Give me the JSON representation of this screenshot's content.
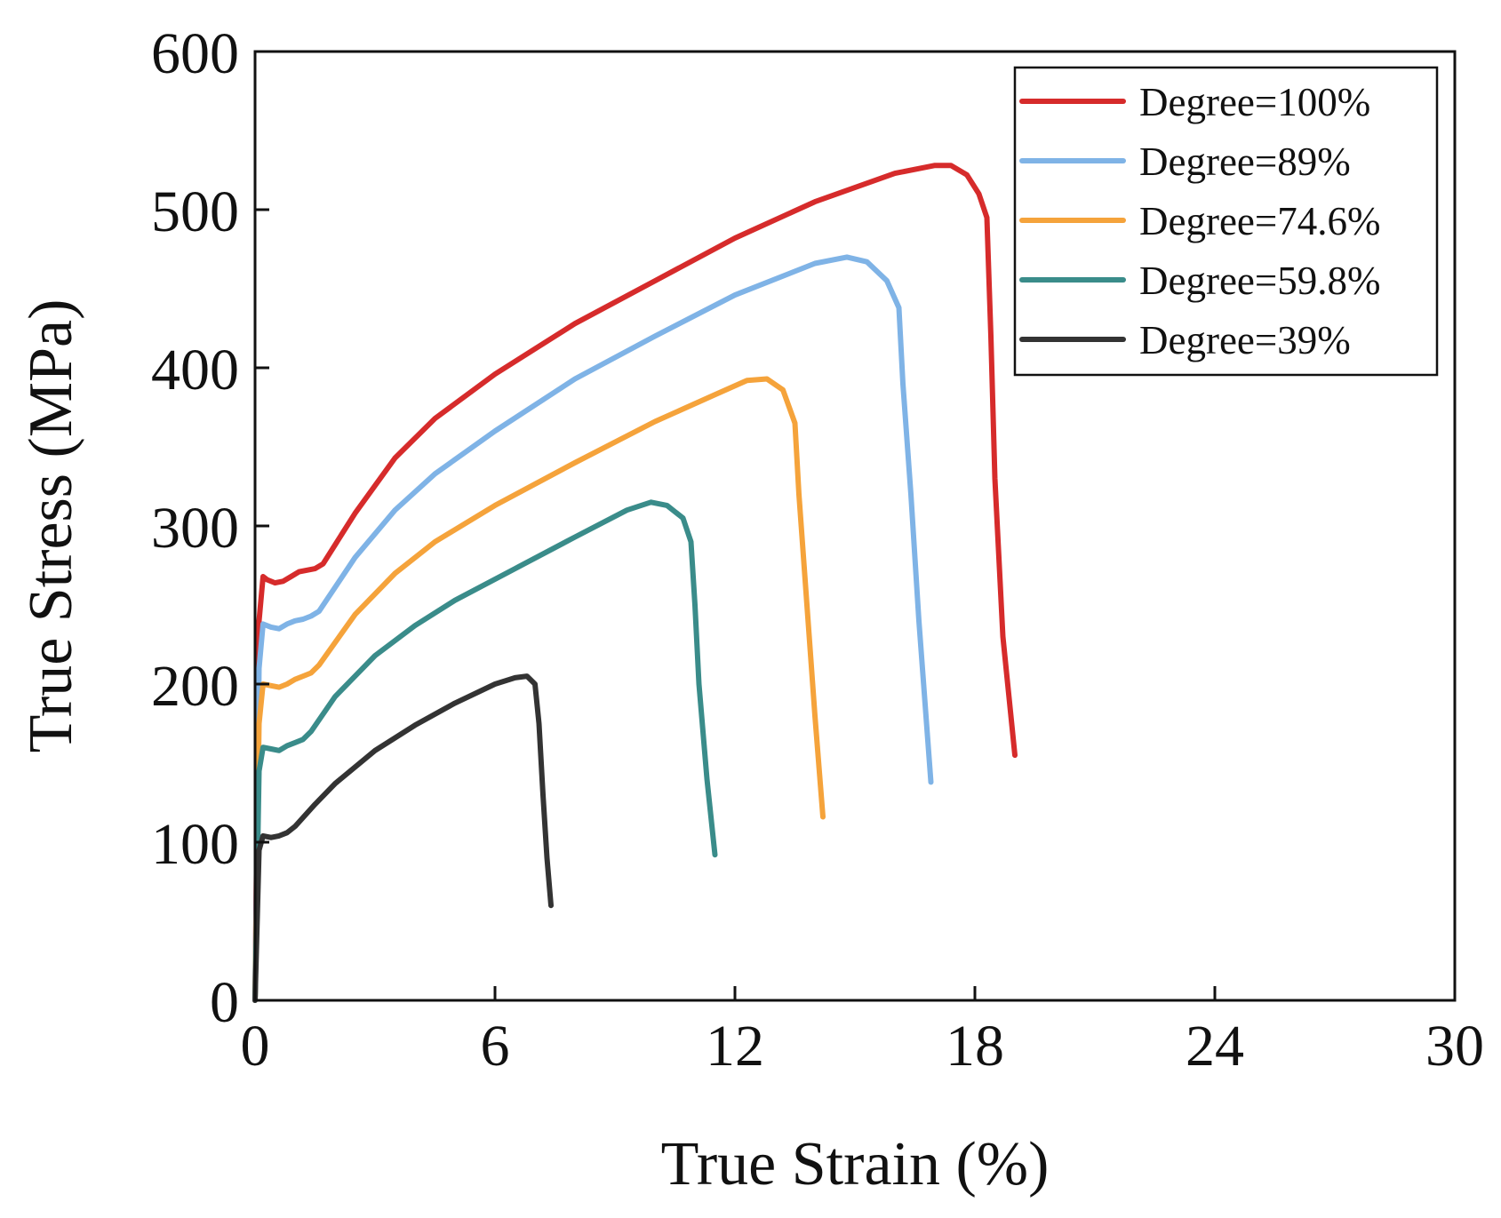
{
  "chart_data": {
    "type": "line",
    "title": "",
    "xlabel": "True Strain (%)",
    "ylabel": "True Stress (MPa)",
    "xlim": [
      0,
      30
    ],
    "ylim": [
      0,
      600
    ],
    "xticks": [
      0,
      6,
      12,
      18,
      24,
      30
    ],
    "yticks": [
      0,
      100,
      200,
      300,
      400,
      500,
      600
    ],
    "grid": false,
    "legend_position": "top-right",
    "series": [
      {
        "name": "Degree=100%",
        "color": "#d62b2b",
        "x": [
          0,
          0.1,
          0.2,
          0.3,
          0.5,
          0.7,
          0.9,
          1.1,
          1.3,
          1.5,
          1.7,
          2.5,
          3.5,
          4.5,
          6,
          8,
          10,
          12,
          14,
          16,
          17,
          17.4,
          17.8,
          18.1,
          18.3,
          18.4,
          18.5,
          18.7,
          19.0
        ],
        "y": [
          0,
          240,
          268,
          266,
          264,
          265,
          268,
          271,
          272,
          273,
          276,
          308,
          343,
          368,
          396,
          428,
          455,
          482,
          505,
          523,
          528,
          528,
          522,
          510,
          495,
          420,
          330,
          230,
          155
        ]
      },
      {
        "name": "Degree=89%",
        "color": "#7fb3e6",
        "x": [
          0,
          0.1,
          0.2,
          0.4,
          0.6,
          0.8,
          1.0,
          1.2,
          1.4,
          1.6,
          2.5,
          3.5,
          4.5,
          6,
          8,
          10,
          12,
          14,
          14.8,
          15.3,
          15.8,
          16.1,
          16.2,
          16.4,
          16.6,
          16.9
        ],
        "y": [
          0,
          210,
          238,
          236,
          235,
          238,
          240,
          241,
          243,
          246,
          280,
          310,
          333,
          360,
          393,
          420,
          446,
          466,
          470,
          467,
          455,
          438,
          390,
          320,
          240,
          138
        ]
      },
      {
        "name": "Degree=74.6%",
        "color": "#f5a33b",
        "x": [
          0,
          0.1,
          0.2,
          0.4,
          0.6,
          0.8,
          1.0,
          1.2,
          1.4,
          1.6,
          2.5,
          3.5,
          4.5,
          6,
          8,
          10,
          11.5,
          12.3,
          12.8,
          13.2,
          13.5,
          13.6,
          13.8,
          14.0,
          14.2
        ],
        "y": [
          0,
          175,
          200,
          199,
          198,
          200,
          203,
          205,
          207,
          212,
          244,
          270,
          290,
          313,
          340,
          366,
          383,
          392,
          393,
          386,
          365,
          320,
          250,
          180,
          116
        ]
      },
      {
        "name": "Degree=59.8%",
        "color": "#3a8c8a",
        "x": [
          0,
          0.1,
          0.2,
          0.4,
          0.6,
          0.8,
          1.0,
          1.2,
          1.4,
          2.0,
          3.0,
          4.0,
          5.0,
          6.5,
          8.0,
          9.3,
          9.9,
          10.3,
          10.7,
          10.9,
          11.0,
          11.1,
          11.3,
          11.5
        ],
        "y": [
          0,
          145,
          160,
          159,
          158,
          161,
          163,
          165,
          170,
          192,
          218,
          237,
          253,
          273,
          293,
          310,
          315,
          313,
          305,
          290,
          250,
          200,
          140,
          92
        ]
      },
      {
        "name": "Degree=39%",
        "color": "#333333",
        "x": [
          0,
          0.1,
          0.2,
          0.4,
          0.6,
          0.8,
          1.0,
          1.5,
          2.0,
          3.0,
          4.0,
          5.0,
          6.0,
          6.5,
          6.8,
          7.0,
          7.1,
          7.2,
          7.3,
          7.4
        ],
        "y": [
          0,
          95,
          104,
          103,
          104,
          106,
          110,
          124,
          137,
          158,
          174,
          188,
          200,
          204,
          205,
          200,
          175,
          130,
          90,
          60
        ]
      }
    ]
  }
}
